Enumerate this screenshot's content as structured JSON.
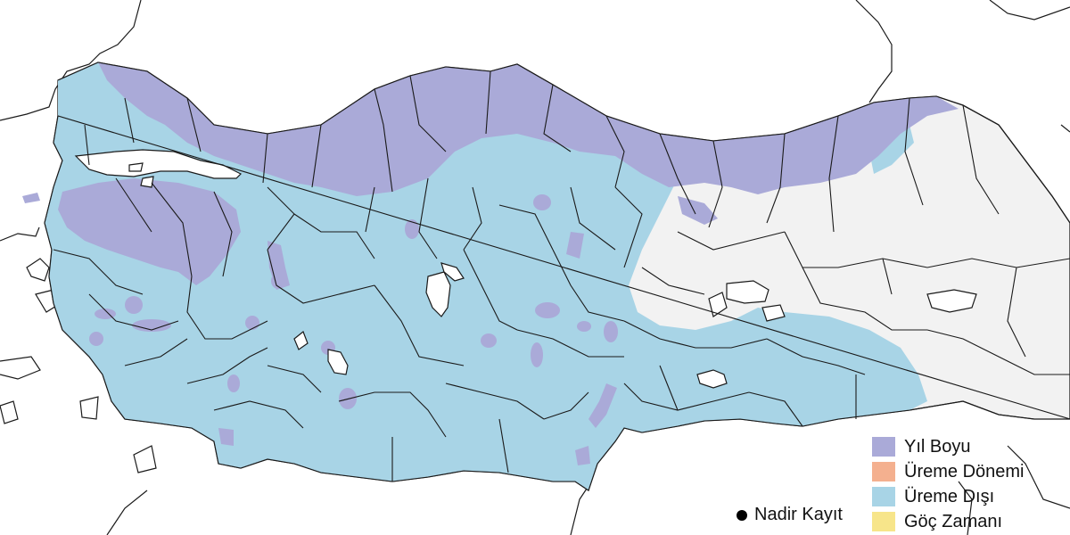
{
  "map": {
    "colors": {
      "background": "#ffffff",
      "outside_range": "#f2f2f2",
      "year_round": "#aaaad8",
      "breeding": "#f4b08f",
      "non_breeding": "#a8d4e6",
      "migration": "#f7e58a",
      "border": "#1a1a1a"
    }
  },
  "legend": {
    "items": [
      {
        "label": "Yıl Boyu",
        "color": "#aaaad8"
      },
      {
        "label": "Üreme Dönemi",
        "color": "#f4b08f"
      },
      {
        "label": "Üreme Dışı",
        "color": "#a8d4e6"
      },
      {
        "label": "Göç Zamanı",
        "color": "#f7e58a"
      }
    ],
    "rare_record": {
      "label": "Nadir Kayıt",
      "icon": "black-dot"
    }
  }
}
